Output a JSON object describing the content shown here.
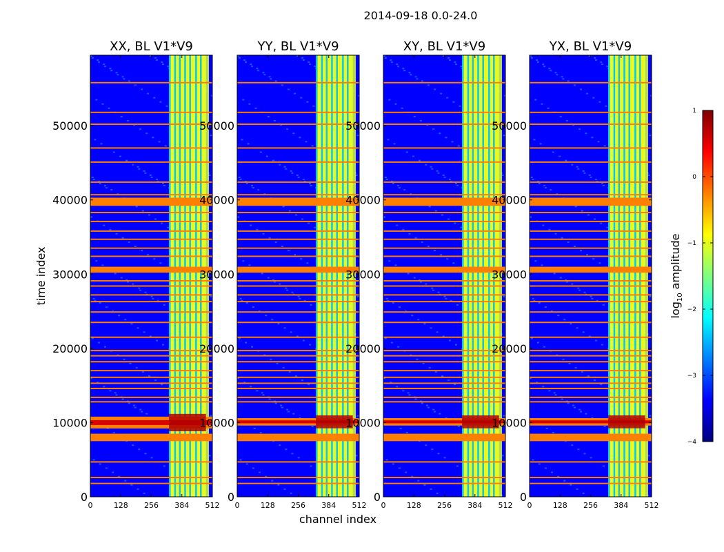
{
  "figure": {
    "suptitle": "2014-09-18 0.0-24.0",
    "xlabel": "channel index",
    "ylabel": "time index"
  },
  "colorbar": {
    "label_prefix": "log",
    "label_subscript": "10",
    "label_suffix": " amplitude",
    "range": [
      -4,
      1
    ],
    "ticks": [
      1,
      0,
      -1,
      -2,
      -3,
      -4
    ],
    "tick_labels": [
      "1",
      "0",
      "−1",
      "−2",
      "−3",
      "−4"
    ],
    "colormap": "jet",
    "colors": [
      "#00007f",
      "#0000ff",
      "#007fff",
      "#00ffff",
      "#7fff7f",
      "#ffff00",
      "#ff7f00",
      "#ff0000",
      "#7f0000"
    ]
  },
  "chart_data": [
    {
      "type": "heatmap",
      "title": "XX, BL V1*V9",
      "x_range": [
        0,
        512
      ],
      "y_range": [
        0,
        59500
      ],
      "x_ticks": [
        0,
        128,
        256,
        384,
        512
      ],
      "y_ticks": [
        0,
        10000,
        20000,
        30000,
        40000,
        50000
      ],
      "background_log_amp": -3.3,
      "active_band_channels": [
        330,
        485
      ],
      "active_band_log_amp": -1.1,
      "channel_stripe_starts": [
        330,
        352,
        372,
        394,
        415,
        440,
        460
      ],
      "strong_rows": [
        [
          7500,
          8500
        ],
        [
          9200,
          10800
        ],
        [
          30200,
          31000
        ],
        [
          39200,
          40300
        ]
      ],
      "flag_rows": [
        1800,
        2600,
        4700,
        12800,
        13400,
        14600,
        15300,
        16100,
        17000,
        18200,
        19000,
        19700,
        21500,
        23500,
        24900,
        26300,
        27200,
        28400,
        29100,
        32400,
        33500,
        34700,
        35800,
        37100,
        38300,
        40700,
        42400,
        45100,
        47000,
        50200,
        51800,
        55800
      ]
    },
    {
      "type": "heatmap",
      "title": "YY, BL V1*V9",
      "x_range": [
        0,
        512
      ],
      "y_range": [
        0,
        59500
      ],
      "x_ticks": [
        0,
        128,
        256,
        384,
        512
      ],
      "y_ticks": [
        0,
        10000,
        20000,
        30000,
        40000,
        50000
      ],
      "background_log_amp": -3.4,
      "active_band_channels": [
        330,
        485
      ],
      "active_band_log_amp": -1.0,
      "channel_stripe_starts": [
        330,
        352,
        372,
        394,
        415,
        440,
        460
      ],
      "strong_rows": [
        [
          7500,
          8500
        ],
        [
          9600,
          10600
        ],
        [
          30200,
          31000
        ],
        [
          39200,
          40300
        ]
      ],
      "flag_rows": [
        1800,
        2600,
        4700,
        12800,
        13400,
        14600,
        15300,
        16100,
        17000,
        18200,
        19000,
        19700,
        21500,
        23500,
        24900,
        26300,
        27200,
        28400,
        29100,
        32400,
        33500,
        34700,
        35800,
        37100,
        38300,
        40700,
        42400,
        45100,
        47000,
        50200,
        51800,
        55800
      ]
    },
    {
      "type": "heatmap",
      "title": "XY, BL V1*V9",
      "x_range": [
        0,
        512
      ],
      "y_range": [
        0,
        59500
      ],
      "x_ticks": [
        0,
        128,
        256,
        384,
        512
      ],
      "y_ticks": [
        0,
        10000,
        20000,
        30000,
        40000,
        50000
      ],
      "background_log_amp": -3.4,
      "active_band_channels": [
        330,
        485
      ],
      "active_band_log_amp": -1.1,
      "channel_stripe_starts": [
        330,
        352,
        372,
        394,
        415,
        440,
        460
      ],
      "strong_rows": [
        [
          7500,
          8500
        ],
        [
          9600,
          10600
        ],
        [
          30200,
          31000
        ],
        [
          39200,
          40300
        ]
      ],
      "flag_rows": [
        1800,
        2600,
        4700,
        12800,
        13400,
        14600,
        15300,
        16100,
        17000,
        18200,
        19000,
        19700,
        21500,
        23500,
        24900,
        26300,
        27200,
        28400,
        29100,
        32400,
        33500,
        34700,
        35800,
        37100,
        38300,
        40700,
        42400,
        45100,
        47000,
        50200,
        51800,
        55800
      ]
    },
    {
      "type": "heatmap",
      "title": "YX, BL V1*V9",
      "x_range": [
        0,
        512
      ],
      "y_range": [
        0,
        59500
      ],
      "x_ticks": [
        0,
        128,
        256,
        384,
        512
      ],
      "y_ticks": [
        0,
        10000,
        20000,
        30000,
        40000,
        50000
      ],
      "background_log_amp": -3.4,
      "active_band_channels": [
        330,
        485
      ],
      "active_band_log_amp": -1.0,
      "channel_stripe_starts": [
        330,
        352,
        372,
        394,
        415,
        440,
        460
      ],
      "strong_rows": [
        [
          7500,
          8500
        ],
        [
          9600,
          10600
        ],
        [
          30200,
          31000
        ],
        [
          39200,
          40300
        ]
      ],
      "flag_rows": [
        1800,
        2600,
        4700,
        12800,
        13400,
        14600,
        15300,
        16100,
        17000,
        18200,
        19000,
        19700,
        21500,
        23500,
        24900,
        26300,
        27200,
        28400,
        29100,
        32400,
        33500,
        34700,
        35800,
        37100,
        38300,
        40700,
        42400,
        45100,
        47000,
        50200,
        51800,
        55800
      ]
    }
  ]
}
